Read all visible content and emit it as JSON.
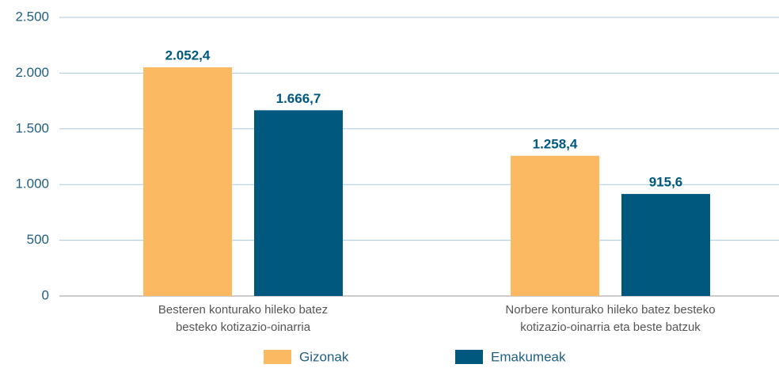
{
  "chart_data": {
    "type": "bar",
    "categories": [
      [
        "Besteren konturako hileko batez",
        "besteko kotizazio-oinarria"
      ],
      [
        "Norbere konturako hileko batez besteko",
        "kotizazio-oinarria eta beste batzuk"
      ]
    ],
    "series": [
      {
        "name": "Gizonak",
        "color": "#fbb962",
        "values": [
          2052.4,
          1258.4
        ],
        "value_labels": [
          "2.052,4",
          "1.258,4"
        ]
      },
      {
        "name": "Emakumeak",
        "color": "#00587f",
        "values": [
          1666.7,
          915.6
        ],
        "value_labels": [
          "1.666,7",
          "915,6"
        ]
      }
    ],
    "ylim": [
      0,
      2500
    ],
    "yticks": [
      0,
      500,
      {
        "value": 1000,
        "label": "1.000"
      },
      {
        "value": 1500,
        "label": "1.500"
      },
      {
        "value": 2000,
        "label": "2.000"
      },
      {
        "value": 2500,
        "label": "2.500"
      }
    ],
    "grid": true,
    "legend": "bottom"
  }
}
